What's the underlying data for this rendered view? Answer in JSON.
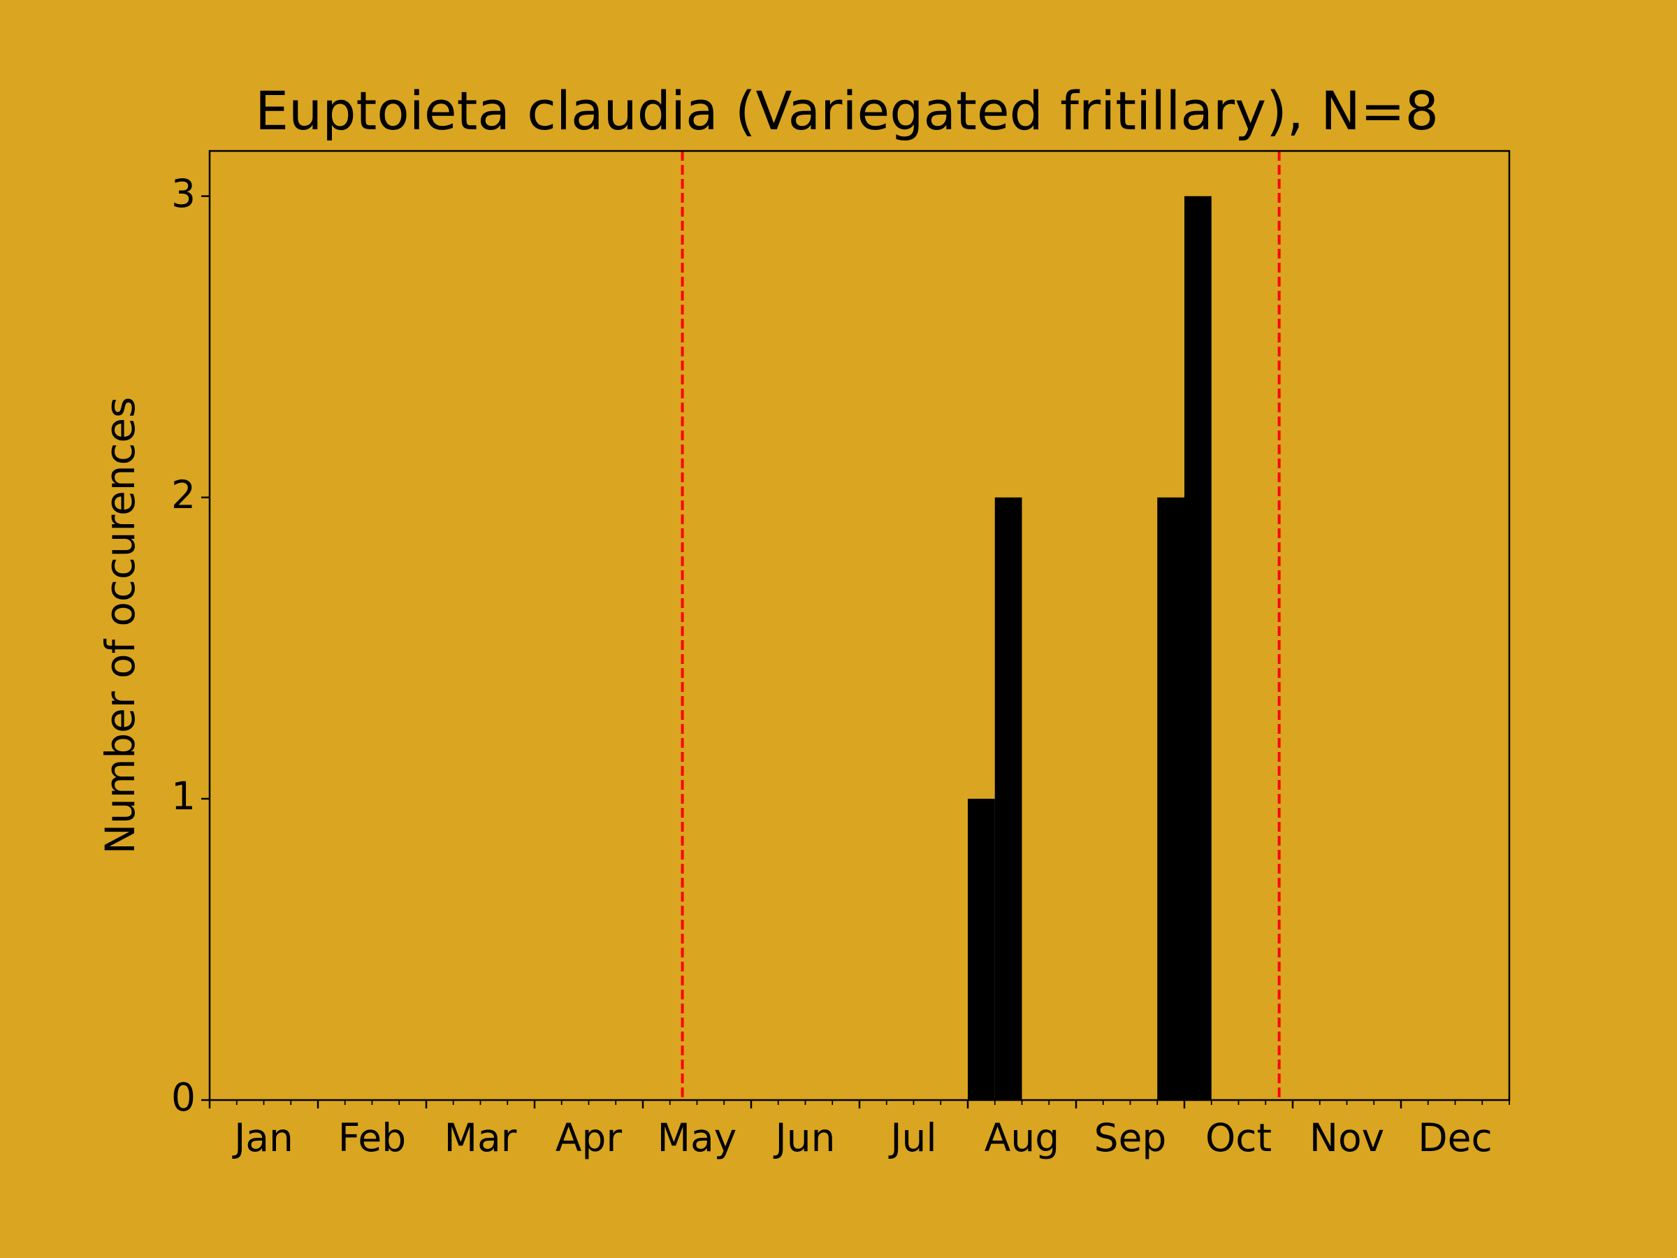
{
  "chart_data": {
    "type": "histogram",
    "title": "Euptoieta claudia (Variegated fritillary), N=8",
    "ylabel": "Number of occurences",
    "bins": [
      0,
      1,
      2,
      3,
      4,
      5,
      6,
      7,
      8,
      9,
      10,
      11,
      12,
      13,
      14,
      15,
      16,
      17,
      18,
      19,
      20,
      21,
      22,
      23,
      24,
      25,
      26,
      27,
      28,
      29,
      30,
      31,
      32,
      33,
      34,
      35,
      36,
      37,
      38,
      39,
      40,
      41,
      42,
      43,
      44,
      45,
      46,
      47,
      48
    ],
    "values": [
      0,
      0,
      0,
      0,
      0,
      0,
      0,
      0,
      0,
      0,
      0,
      0,
      0,
      0,
      0,
      0,
      0,
      0,
      0,
      0,
      0,
      0,
      0,
      0,
      0,
      0,
      0,
      0,
      1,
      2,
      0,
      0,
      0,
      0,
      0,
      2,
      3,
      0,
      0,
      0,
      0,
      0,
      0,
      0,
      0,
      0,
      0,
      0
    ],
    "color": "#000000",
    "xlim": [
      0,
      48
    ],
    "xticks": [
      {
        "value": 0,
        "label": "Jan"
      },
      {
        "value": 4,
        "label": "Feb"
      },
      {
        "value": 8,
        "label": "Mar"
      },
      {
        "value": 12,
        "label": "Apr"
      },
      {
        "value": 16,
        "label": "May"
      },
      {
        "value": 20,
        "label": "Jun"
      },
      {
        "value": 24,
        "label": "Jul"
      },
      {
        "value": 28,
        "label": "Aug"
      },
      {
        "value": 32,
        "label": "Sep"
      },
      {
        "value": 36,
        "label": "Oct"
      },
      {
        "value": 40,
        "label": "Nov"
      },
      {
        "value": 44,
        "label": "Dec"
      }
    ],
    "xminor": [
      0,
      1,
      2,
      3,
      4,
      5,
      6,
      7,
      8,
      9,
      10,
      11,
      12,
      13,
      14,
      15,
      16,
      17,
      18,
      19,
      20,
      21,
      22,
      23,
      24,
      25,
      26,
      27,
      28,
      29,
      30,
      31,
      32,
      33,
      34,
      35,
      36,
      37,
      38,
      39,
      40,
      41,
      42,
      43,
      44,
      45,
      46,
      47,
      48
    ],
    "ylim": [
      0,
      3.15
    ],
    "yticks": [
      0,
      1,
      2,
      3
    ],
    "vlines": {
      "color": "#ff0000",
      "values": [
        17.46,
        39.5
      ]
    }
  }
}
